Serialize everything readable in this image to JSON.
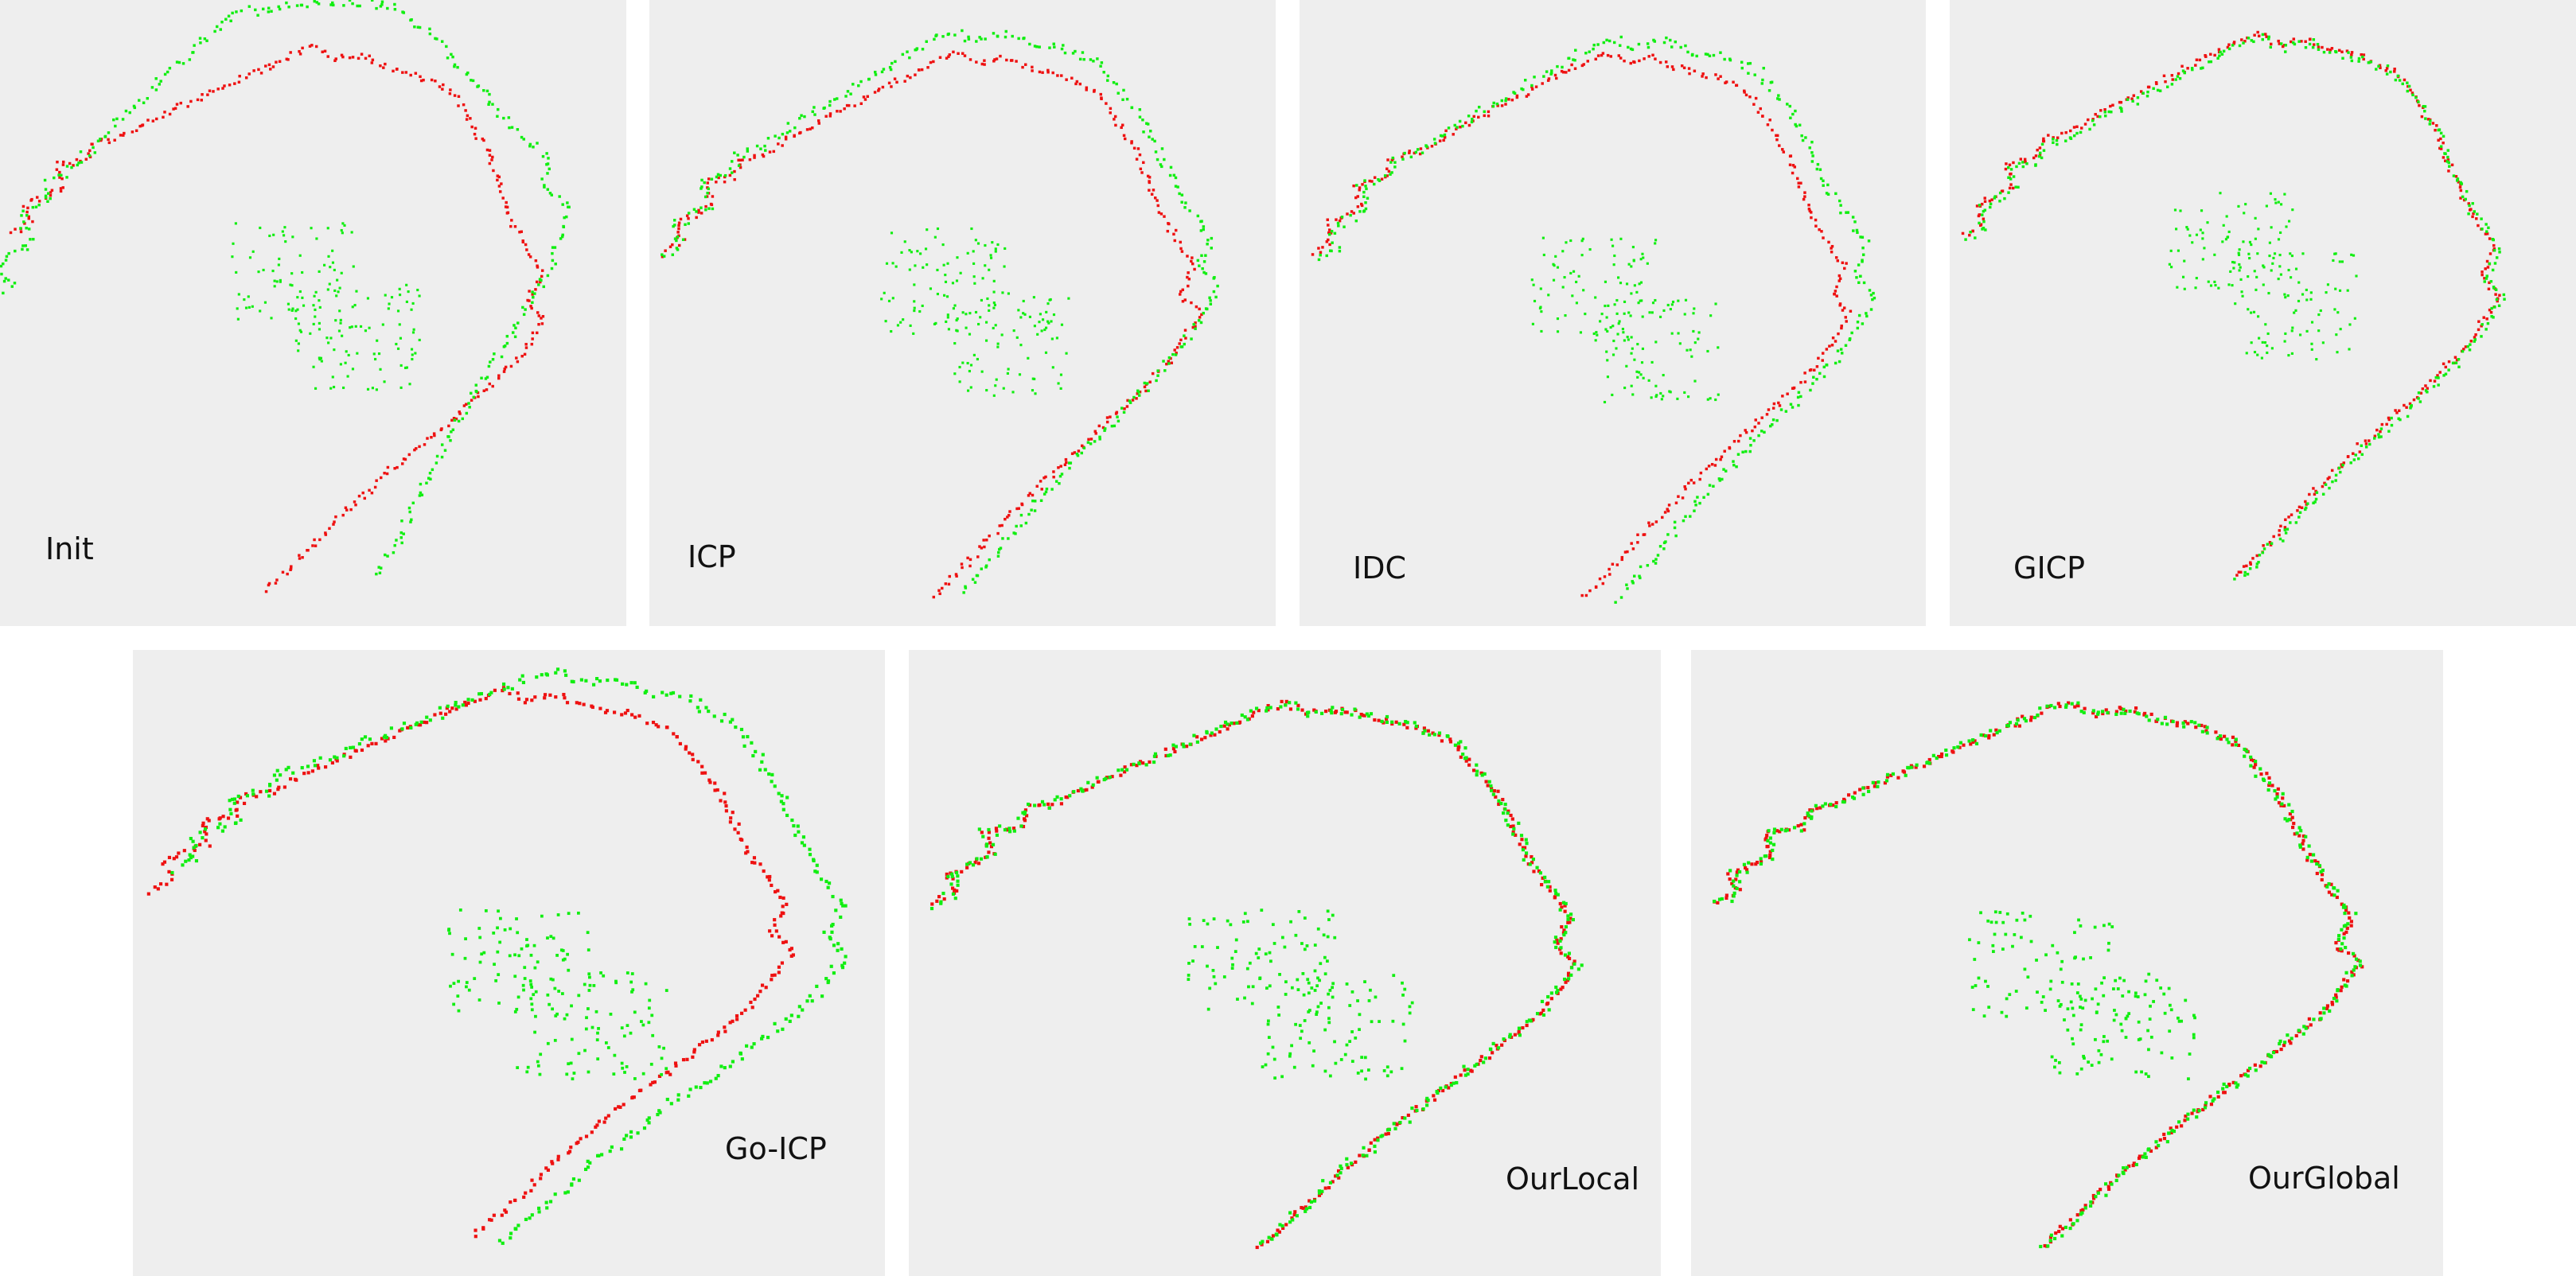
{
  "colors": {
    "background": "#ffffff",
    "panel_background": "#eeeeee",
    "target_points": "#ee1111",
    "source_points": "#11ee11",
    "label_text": "#111111"
  },
  "panels": [
    {
      "id": "init",
      "label": "Init",
      "alignment": "unaligned"
    },
    {
      "id": "icp",
      "label": "ICP",
      "alignment": "partial"
    },
    {
      "id": "idc",
      "label": "IDC",
      "alignment": "partial"
    },
    {
      "id": "gicp",
      "label": "GICP",
      "alignment": "good"
    },
    {
      "id": "go-icp",
      "label": "Go-ICP",
      "alignment": "offset"
    },
    {
      "id": "ourlocal",
      "label": "OurLocal",
      "alignment": "aligned"
    },
    {
      "id": "ourglobal",
      "label": "OurGlobal",
      "alignment": "aligned"
    }
  ]
}
